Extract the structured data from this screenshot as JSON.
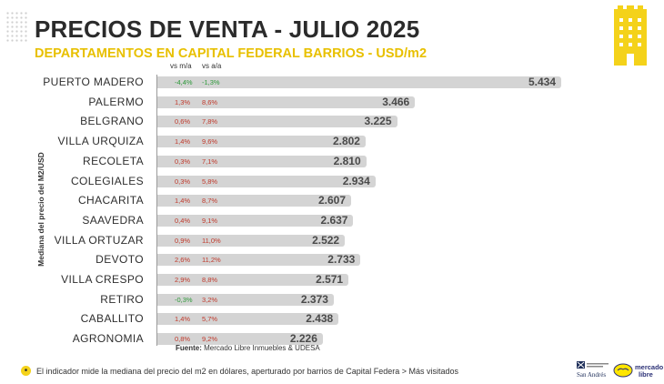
{
  "title": "PRECIOS DE VENTA - JULIO 2025",
  "subtitle": "DEPARTAMENTOS EN CAPITAL FEDERAL BARRIOS - USD/m2",
  "headers": {
    "mom": "vs m/a",
    "yoy": "vs a/a"
  },
  "source_label": "Fuente:",
  "source_text": "Mercado Libre Inmuebles & UDESA",
  "footnote": "El indicador mide la mediana del precio del m2 en dólares, aperturado por barrios de Capital Federa > Más visitados",
  "logos": {
    "san_andres": "San Andrés",
    "mercado_libre": "mercado libre"
  },
  "colors": {
    "accent": "#f4d21a",
    "bar": "#d4d4d4",
    "negative": "#2e9a3a",
    "positive": "#c0392b"
  },
  "chart_data": {
    "type": "bar",
    "orientation": "horizontal",
    "title": "PRECIOS DE VENTA - JULIO 2025",
    "subtitle": "DEPARTAMENTOS EN CAPITAL FEDERAL BARRIOS - USD/m2",
    "ylabel": "Mediana del precio del M2/USD",
    "xlim": [
      0,
      5500
    ],
    "grid": false,
    "categories": [
      "PUERTO MADERO",
      "PALERMO",
      "BELGRANO",
      "VILLA URQUIZA",
      "RECOLETA",
      "COLEGIALES",
      "CHACARITA",
      "SAAVEDRA",
      "VILLA ORTUZAR",
      "DEVOTO",
      "VILLA CRESPO",
      "RETIRO",
      "CABALLITO",
      "AGRONOMIA"
    ],
    "values": [
      5434,
      3466,
      3225,
      2802,
      2810,
      2934,
      2607,
      2637,
      2522,
      2733,
      2571,
      2373,
      2438,
      2226
    ],
    "value_labels": [
      "5.434",
      "3.466",
      "3.225",
      "2.802",
      "2.810",
      "2.934",
      "2.607",
      "2.637",
      "2.522",
      "2.733",
      "2.571",
      "2.373",
      "2.438",
      "2.226"
    ],
    "vs_mom": [
      "-4,4%",
      "1,3%",
      "0,6%",
      "1,4%",
      "0,3%",
      "0,3%",
      "1,4%",
      "0,4%",
      "0,9%",
      "2,6%",
      "2,9%",
      "-0,3%",
      "1,4%",
      "0,8%"
    ],
    "vs_yoy": [
      "-1,3%",
      "8,6%",
      "7,8%",
      "9,6%",
      "7,1%",
      "5,8%",
      "8,7%",
      "9,1%",
      "11,0%",
      "11,2%",
      "8,8%",
      "3,2%",
      "5,7%",
      "9,2%"
    ]
  }
}
